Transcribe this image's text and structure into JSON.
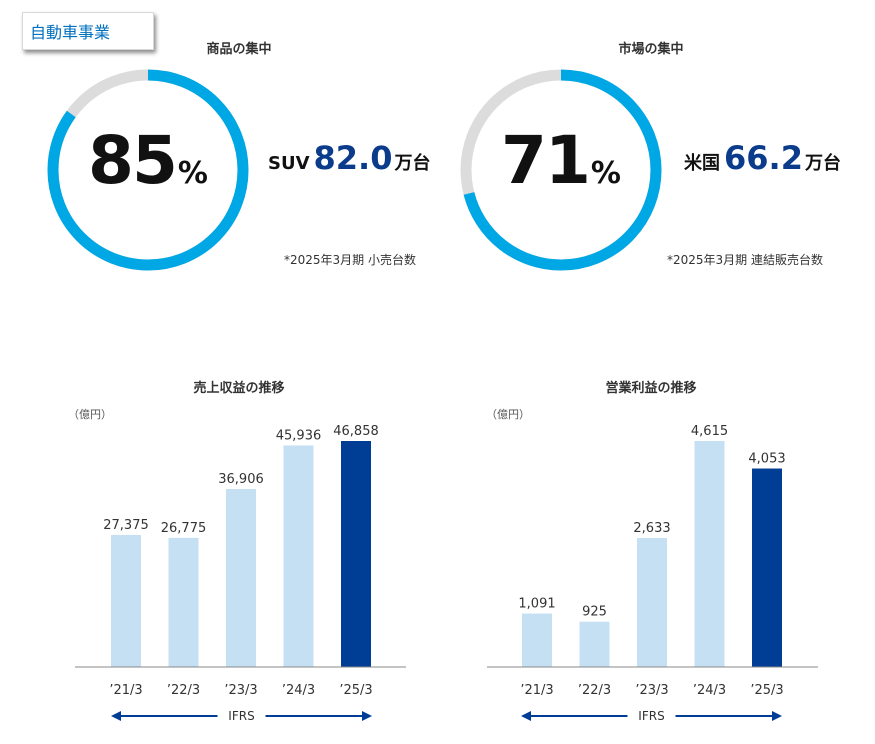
{
  "badge": "自動車事業",
  "donuts": [
    {
      "title": "商品の集中",
      "percent": 85,
      "percent_sign": "%",
      "stat_label": "SUV",
      "stat_value": "82.0",
      "stat_unit": "万台",
      "footnote": "*2025年3月期 小売台数"
    },
    {
      "title": "市場の集中",
      "percent": 71,
      "percent_sign": "%",
      "stat_label": "米国",
      "stat_value": "66.2",
      "stat_unit": "万台",
      "footnote": "*2025年3月期 連結販売台数"
    }
  ],
  "colors": {
    "donut_fill": "#00a7e5",
    "donut_track": "#dcdcdc",
    "bar_light": "#c5dff3",
    "bar_dark": "#003d94",
    "stat_blue": "#0b3c8c",
    "badge_text": "#0070c0"
  },
  "chart_data": [
    {
      "type": "bar",
      "title": "売上収益の推移",
      "unit": "（億円）",
      "categories": [
        "’21/3",
        "’22/3",
        "’23/3",
        "’24/3",
        "’25/3"
      ],
      "values": [
        27375,
        26775,
        36906,
        45936,
        46858
      ],
      "value_labels": [
        "27,375",
        "26,775",
        "36,906",
        "45,936",
        "46,858"
      ],
      "highlight_last": true,
      "ylim": [
        0,
        50000
      ],
      "grid": false,
      "ifrs_label": "IFRS"
    },
    {
      "type": "bar",
      "title": "営業利益の推移",
      "unit": "（億円）",
      "categories": [
        "’21/3",
        "’22/3",
        "’23/3",
        "’24/3",
        "’25/3"
      ],
      "values": [
        1091,
        925,
        2633,
        4615,
        4053
      ],
      "value_labels": [
        "1,091",
        "925",
        "2,633",
        "4,615",
        "4,053"
      ],
      "highlight_last": true,
      "ylim": [
        0,
        4950
      ],
      "grid": false,
      "ifrs_label": "IFRS"
    }
  ]
}
